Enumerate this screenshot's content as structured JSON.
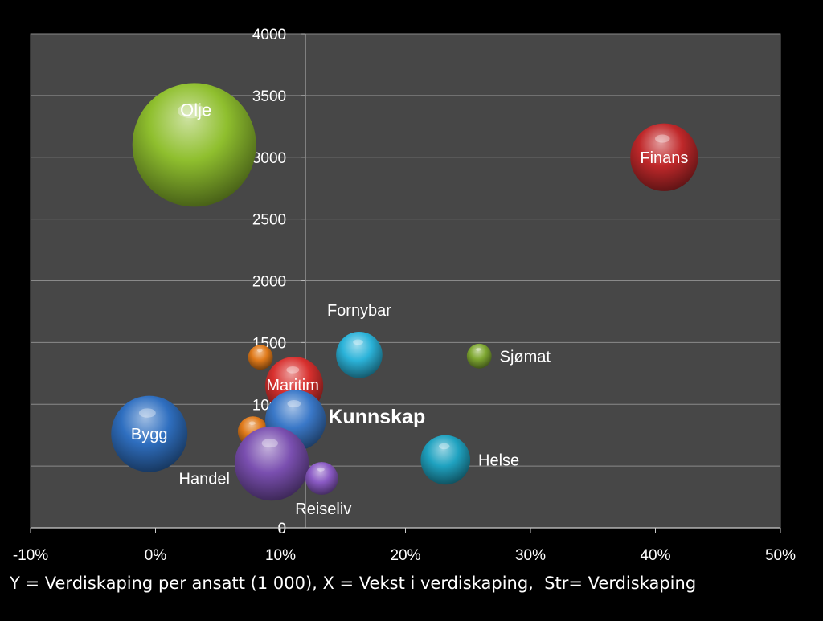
{
  "chart_data": {
    "type": "bubble",
    "x_ticks": [
      "-10%",
      "0%",
      "10%",
      "20%",
      "30%",
      "40%",
      "50%"
    ],
    "y_ticks": [
      "0",
      "500",
      "1000",
      "1500",
      "2000",
      "2500",
      "3000",
      "3500",
      "4000"
    ],
    "xlim": [
      -10,
      50
    ],
    "ylim": [
      0,
      4000
    ],
    "grid": "horizontal",
    "background": "#474747",
    "points": [
      {
        "label": "Olje",
        "x": 3.1,
        "y": 3100,
        "size": 100,
        "color": "#8fbf2e",
        "label_pos": "inside",
        "label_bold": false
      },
      {
        "label": "Finans",
        "x": 40.7,
        "y": 3000,
        "size": 30,
        "color": "#c0282a",
        "label_pos": "inside",
        "label_bold": false
      },
      {
        "label": "Fornybar",
        "x": 16.3,
        "y": 1400,
        "size": 14,
        "color": "#2bb3d9",
        "label_pos": "above",
        "label_bold": false
      },
      {
        "label": "Sjømat",
        "x": 25.9,
        "y": 1390,
        "size": 4,
        "color": "#7fa832",
        "label_pos": "right",
        "label_bold": false
      },
      {
        "label": "",
        "x": 8.4,
        "y": 1380,
        "size": 4,
        "color": "#e07a1a",
        "label_pos": "none",
        "label_bold": false
      },
      {
        "label": "Maritim",
        "x": 11.1,
        "y": 1150,
        "size": 22,
        "color": "#d8302e",
        "label_pos": "inside",
        "label_bold": false
      },
      {
        "label": "Bygg",
        "x": -0.5,
        "y": 760,
        "size": 38,
        "color": "#2f6fc0",
        "label_pos": "inside",
        "label_bold": false
      },
      {
        "label": "",
        "x": 7.8,
        "y": 780,
        "size": 6,
        "color": "#e07a1a",
        "label_pos": "none",
        "label_bold": false
      },
      {
        "label": "Kunnskap",
        "x": 11.2,
        "y": 870,
        "size": 24,
        "color": "#3a78c8",
        "label_pos": "right",
        "label_bold": true
      },
      {
        "label": "Handel",
        "x": 9.3,
        "y": 520,
        "size": 36,
        "color": "#7a4fb0",
        "label_pos": "left",
        "label_bold": false
      },
      {
        "label": "Reiseliv",
        "x": 13.3,
        "y": 400,
        "size": 7,
        "color": "#8a5ac4",
        "label_pos": "below",
        "label_bold": false
      },
      {
        "label": "Helse",
        "x": 23.2,
        "y": 550,
        "size": 16,
        "color": "#1fa2c0",
        "label_pos": "right",
        "label_bold": false
      }
    ]
  },
  "caption": "Y = Verdiskaping per ansatt (1 000), X = Vekst i verdiskaping,  Str= Verdiskaping"
}
